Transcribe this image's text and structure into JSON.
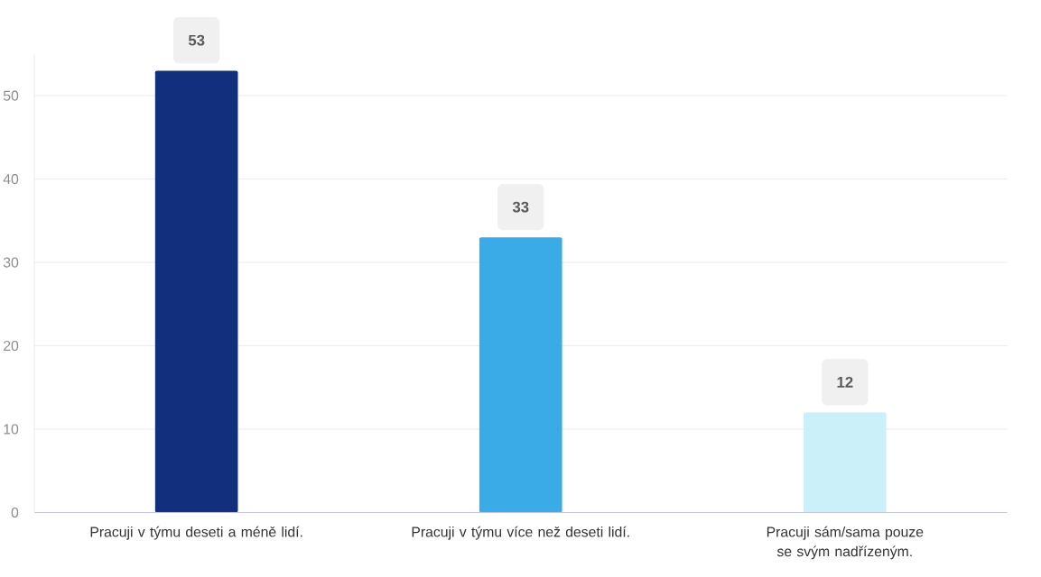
{
  "chart_data": {
    "type": "bar",
    "categories": [
      "Pracuji v týmu deseti a méně lidí.",
      "Pracuji v týmu více než deseti lidí.",
      "Pracuji sám/sama pouze se svým nadřízeným."
    ],
    "values": [
      53,
      33,
      12
    ],
    "colors": [
      "#122f7e",
      "#3aabe6",
      "#ccf0fa"
    ],
    "ylim": [
      0,
      55
    ],
    "yticks": [
      0,
      10,
      20,
      30,
      40,
      50
    ],
    "grid": "y",
    "data_labels": true
  }
}
